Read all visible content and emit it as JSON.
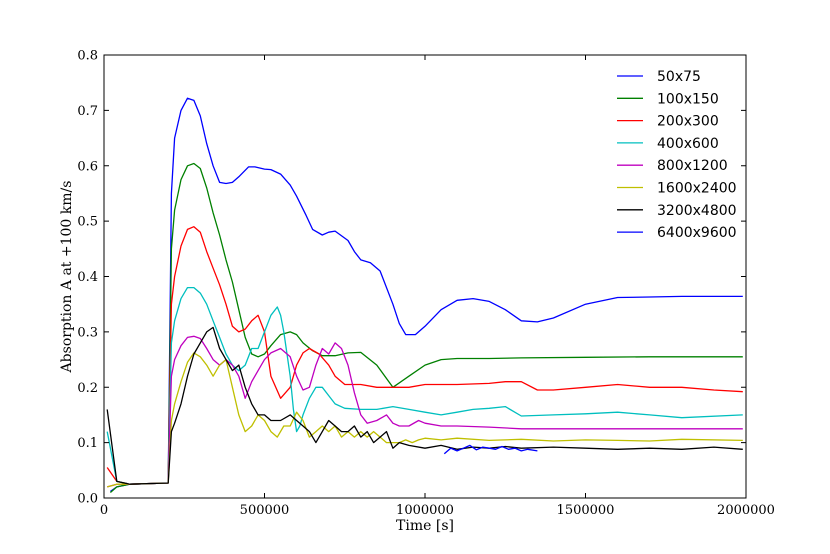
{
  "chart_data": {
    "type": "line",
    "title": "",
    "xlabel": "Time [s]",
    "ylabel": "Absorption A at +100 km/s",
    "xlim": [
      0,
      2000000
    ],
    "ylim": [
      0.0,
      0.8
    ],
    "xticks": [
      0,
      500000,
      1000000,
      1500000,
      2000000
    ],
    "yticks": [
      0.0,
      0.1,
      0.2,
      0.3,
      0.4,
      0.5,
      0.6,
      0.7,
      0.8
    ],
    "xtick_labels": [
      "0",
      "500000",
      "1000000",
      "1500000",
      "2000000"
    ],
    "ytick_labels": [
      "0.0",
      "0.1",
      "0.2",
      "0.3",
      "0.4",
      "0.5",
      "0.6",
      "0.7",
      "0.8"
    ],
    "grid": false,
    "legend_position": "top-right",
    "series": [
      {
        "name": "50x75",
        "color": "#0000ff",
        "x": [
          20000,
          40000,
          80000,
          200000,
          210000,
          220000,
          240000,
          260000,
          280000,
          300000,
          320000,
          340000,
          360000,
          380000,
          400000,
          420000,
          450000,
          470000,
          500000,
          520000,
          550000,
          580000,
          600000,
          630000,
          650000,
          680000,
          700000,
          720000,
          760000,
          780000,
          800000,
          830000,
          860000,
          900000,
          920000,
          940000,
          970000,
          1000000,
          1050000,
          1100000,
          1150000,
          1200000,
          1250000,
          1300000,
          1350000,
          1400000,
          1500000,
          1600000,
          1700000,
          1800000,
          1900000,
          1990000
        ],
        "y": [
          0.012,
          0.02,
          0.025,
          0.027,
          0.55,
          0.65,
          0.7,
          0.722,
          0.718,
          0.69,
          0.64,
          0.6,
          0.57,
          0.568,
          0.57,
          0.58,
          0.598,
          0.598,
          0.594,
          0.593,
          0.585,
          0.565,
          0.545,
          0.51,
          0.485,
          0.475,
          0.48,
          0.482,
          0.465,
          0.445,
          0.43,
          0.425,
          0.41,
          0.35,
          0.315,
          0.295,
          0.295,
          0.31,
          0.34,
          0.357,
          0.36,
          0.355,
          0.34,
          0.32,
          0.318,
          0.325,
          0.35,
          0.362,
          0.363,
          0.364,
          0.364,
          0.364
        ]
      },
      {
        "name": "100x150",
        "color": "#008000",
        "x": [
          20000,
          40000,
          80000,
          200000,
          210000,
          220000,
          240000,
          260000,
          280000,
          300000,
          320000,
          340000,
          360000,
          380000,
          400000,
          420000,
          440000,
          460000,
          480000,
          500000,
          520000,
          550000,
          580000,
          600000,
          620000,
          650000,
          680000,
          720000,
          760000,
          800000,
          850000,
          900000,
          950000,
          1000000,
          1050000,
          1100000,
          1200000,
          1300000,
          1500000,
          1700000,
          1990000
        ],
        "y": [
          0.01,
          0.02,
          0.025,
          0.027,
          0.45,
          0.52,
          0.575,
          0.6,
          0.604,
          0.595,
          0.56,
          0.515,
          0.475,
          0.43,
          0.39,
          0.34,
          0.29,
          0.26,
          0.255,
          0.26,
          0.275,
          0.295,
          0.3,
          0.295,
          0.28,
          0.266,
          0.257,
          0.257,
          0.262,
          0.263,
          0.24,
          0.2,
          0.22,
          0.24,
          0.25,
          0.252,
          0.252,
          0.253,
          0.254,
          0.255,
          0.255
        ]
      },
      {
        "name": "200x300",
        "color": "#ff0000",
        "x": [
          10000,
          40000,
          80000,
          200000,
          210000,
          220000,
          240000,
          260000,
          280000,
          300000,
          320000,
          340000,
          360000,
          380000,
          400000,
          420000,
          440000,
          460000,
          480000,
          500000,
          520000,
          550000,
          580000,
          600000,
          620000,
          640000,
          670000,
          700000,
          720000,
          750000,
          800000,
          850000,
          900000,
          950000,
          1000000,
          1100000,
          1200000,
          1250000,
          1300000,
          1350000,
          1400000,
          1500000,
          1600000,
          1700000,
          1800000,
          1900000,
          1990000
        ],
        "y": [
          0.055,
          0.03,
          0.025,
          0.027,
          0.35,
          0.4,
          0.455,
          0.485,
          0.49,
          0.48,
          0.445,
          0.415,
          0.385,
          0.35,
          0.31,
          0.3,
          0.305,
          0.32,
          0.33,
          0.3,
          0.22,
          0.18,
          0.2,
          0.24,
          0.262,
          0.27,
          0.26,
          0.24,
          0.22,
          0.205,
          0.205,
          0.2,
          0.2,
          0.2,
          0.205,
          0.205,
          0.207,
          0.21,
          0.21,
          0.195,
          0.195,
          0.2,
          0.205,
          0.2,
          0.2,
          0.195,
          0.192
        ]
      },
      {
        "name": "400x600",
        "color": "#00bfbf",
        "x": [
          10000,
          40000,
          80000,
          200000,
          210000,
          220000,
          240000,
          260000,
          280000,
          300000,
          320000,
          340000,
          360000,
          380000,
          400000,
          420000,
          440000,
          460000,
          480000,
          500000,
          520000,
          540000,
          550000,
          560000,
          570000,
          580000,
          590000,
          600000,
          610000,
          620000,
          640000,
          660000,
          680000,
          700000,
          720000,
          750000,
          800000,
          850000,
          900000,
          950000,
          1000000,
          1050000,
          1100000,
          1150000,
          1200000,
          1250000,
          1300000,
          1400000,
          1500000,
          1600000,
          1700000,
          1800000,
          1990000
        ],
        "y": [
          0.12,
          0.03,
          0.025,
          0.027,
          0.28,
          0.32,
          0.36,
          0.38,
          0.38,
          0.37,
          0.35,
          0.32,
          0.29,
          0.26,
          0.24,
          0.23,
          0.24,
          0.27,
          0.27,
          0.3,
          0.33,
          0.345,
          0.33,
          0.3,
          0.26,
          0.22,
          0.16,
          0.12,
          0.13,
          0.15,
          0.18,
          0.2,
          0.2,
          0.185,
          0.17,
          0.162,
          0.16,
          0.16,
          0.165,
          0.16,
          0.155,
          0.15,
          0.155,
          0.16,
          0.162,
          0.165,
          0.148,
          0.15,
          0.152,
          0.155,
          0.15,
          0.145,
          0.15
        ]
      },
      {
        "name": "800x1200",
        "color": "#bf00bf",
        "x": [
          10000,
          40000,
          80000,
          200000,
          210000,
          220000,
          240000,
          260000,
          280000,
          300000,
          320000,
          340000,
          360000,
          380000,
          400000,
          420000,
          440000,
          460000,
          480000,
          500000,
          520000,
          550000,
          580000,
          600000,
          620000,
          640000,
          660000,
          680000,
          700000,
          720000,
          740000,
          760000,
          780000,
          800000,
          820000,
          850000,
          880000,
          900000,
          920000,
          950000,
          980000,
          1000000,
          1050000,
          1100000,
          1200000,
          1300000,
          1400000,
          1500000,
          1600000,
          1700000,
          1800000,
          1990000
        ],
        "y": [
          0.02,
          0.025,
          0.025,
          0.027,
          0.22,
          0.25,
          0.275,
          0.29,
          0.292,
          0.288,
          0.27,
          0.25,
          0.24,
          0.25,
          0.24,
          0.22,
          0.18,
          0.21,
          0.23,
          0.25,
          0.262,
          0.27,
          0.255,
          0.22,
          0.195,
          0.2,
          0.24,
          0.27,
          0.26,
          0.28,
          0.27,
          0.24,
          0.19,
          0.15,
          0.135,
          0.14,
          0.15,
          0.135,
          0.13,
          0.13,
          0.14,
          0.135,
          0.13,
          0.13,
          0.128,
          0.125,
          0.125,
          0.125,
          0.125,
          0.125,
          0.125,
          0.125
        ]
      },
      {
        "name": "1600x2400",
        "color": "#bfbf00",
        "x": [
          10000,
          40000,
          80000,
          200000,
          210000,
          220000,
          240000,
          260000,
          280000,
          300000,
          320000,
          340000,
          360000,
          380000,
          400000,
          420000,
          440000,
          460000,
          480000,
          500000,
          520000,
          540000,
          560000,
          580000,
          600000,
          620000,
          640000,
          660000,
          680000,
          700000,
          720000,
          740000,
          760000,
          780000,
          800000,
          820000,
          840000,
          860000,
          880000,
          900000,
          920000,
          940000,
          960000,
          980000,
          1000000,
          1050000,
          1100000,
          1200000,
          1300000,
          1400000,
          1500000,
          1600000,
          1700000,
          1800000,
          1990000
        ],
        "y": [
          0.02,
          0.025,
          0.025,
          0.027,
          0.14,
          0.17,
          0.21,
          0.245,
          0.262,
          0.255,
          0.24,
          0.22,
          0.24,
          0.25,
          0.2,
          0.15,
          0.12,
          0.13,
          0.15,
          0.14,
          0.12,
          0.11,
          0.13,
          0.13,
          0.155,
          0.14,
          0.11,
          0.12,
          0.13,
          0.12,
          0.13,
          0.11,
          0.12,
          0.11,
          0.12,
          0.11,
          0.12,
          0.11,
          0.1,
          0.1,
          0.1,
          0.105,
          0.1,
          0.105,
          0.108,
          0.105,
          0.108,
          0.104,
          0.106,
          0.103,
          0.105,
          0.104,
          0.103,
          0.106,
          0.104
        ]
      },
      {
        "name": "3200x4800",
        "color": "#000000",
        "x": [
          10000,
          40000,
          80000,
          200000,
          210000,
          220000,
          240000,
          260000,
          280000,
          300000,
          320000,
          340000,
          360000,
          380000,
          400000,
          420000,
          440000,
          460000,
          480000,
          500000,
          520000,
          550000,
          580000,
          600000,
          620000,
          640000,
          660000,
          680000,
          700000,
          720000,
          740000,
          760000,
          780000,
          800000,
          820000,
          840000,
          860000,
          880000,
          900000,
          920000,
          950000,
          1000000,
          1050000,
          1100000,
          1150000,
          1200000,
          1250000,
          1300000,
          1400000,
          1500000,
          1600000,
          1700000,
          1800000,
          1900000,
          1990000
        ],
        "y": [
          0.16,
          0.03,
          0.025,
          0.027,
          0.12,
          0.135,
          0.17,
          0.22,
          0.26,
          0.28,
          0.3,
          0.308,
          0.27,
          0.25,
          0.23,
          0.24,
          0.2,
          0.17,
          0.15,
          0.15,
          0.14,
          0.14,
          0.15,
          0.14,
          0.13,
          0.12,
          0.1,
          0.12,
          0.14,
          0.13,
          0.12,
          0.12,
          0.13,
          0.11,
          0.12,
          0.1,
          0.11,
          0.12,
          0.09,
          0.1,
          0.095,
          0.09,
          0.095,
          0.088,
          0.092,
          0.09,
          0.093,
          0.09,
          0.092,
          0.09,
          0.088,
          0.09,
          0.088,
          0.092,
          0.088
        ]
      },
      {
        "name": "6400x9600",
        "color": "#0000ff",
        "x": [
          1060000,
          1080000,
          1100000,
          1120000,
          1140000,
          1160000,
          1180000,
          1200000,
          1220000,
          1240000,
          1260000,
          1280000,
          1300000,
          1320000,
          1350000
        ],
        "y": [
          0.08,
          0.09,
          0.085,
          0.09,
          0.095,
          0.087,
          0.092,
          0.09,
          0.088,
          0.093,
          0.088,
          0.09,
          0.085,
          0.088,
          0.085
        ]
      }
    ]
  }
}
